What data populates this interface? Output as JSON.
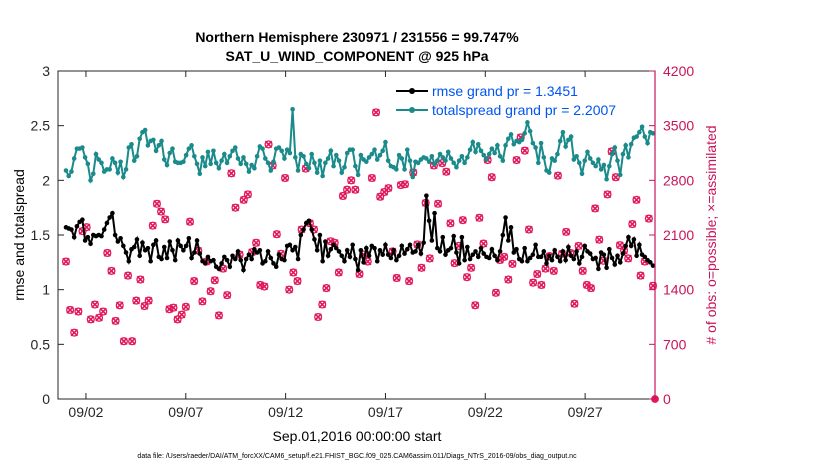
{
  "chart_data": {
    "type": "line",
    "title": "Northern Hemisphere 230971 / 231556 = 99.747%",
    "subtitle": "SAT_U_WIND_COMPONENT @ 925 hPa",
    "xlabel": "Sep.01,2016 00:00:00 start",
    "ylabel_left": "rmse and totalspread",
    "ylabel_right": "# of obs: o=possible; ×=assimilated",
    "footnote": "data file: /Users/raeder/DAI/ATM_forcXX/CAM6_setup/f.e21.FHIST_BGC.f09_025.CAM6assim.011/Diags_NTrS_2016-09/obs_diag_output.nc",
    "xlim": [
      0.6,
      30.5
    ],
    "x_ticks": [
      2,
      7,
      12,
      17,
      22,
      27
    ],
    "x_tick_labels": [
      "09/02",
      "09/07",
      "09/12",
      "09/17",
      "09/22",
      "09/27"
    ],
    "ylim_left": [
      0,
      3
    ],
    "y_ticks_left": [
      "0",
      "0.5",
      "1",
      "1.5",
      "2",
      "2.5",
      "3"
    ],
    "ylim_right": [
      0,
      4200
    ],
    "y_ticks_right": [
      "0",
      "700",
      "1400",
      "2100",
      "2800",
      "3500",
      "4200"
    ],
    "grid": false,
    "legend_position": "top-right",
    "colors": {
      "rmse": "#000000",
      "spread": "#1a8a8a",
      "obs": "#e0185a",
      "right_axis": "#c8145a",
      "legend_text": "#0055ee"
    },
    "series": [
      {
        "name": "rmse grand pr = 1.3451",
        "axis": "left",
        "values": [
          1.57,
          1.56,
          1.55,
          1.48,
          1.58,
          1.62,
          1.64,
          1.45,
          1.48,
          1.42,
          1.5,
          1.49,
          1.5,
          1.49,
          1.55,
          1.61,
          1.66,
          1.7,
          1.5,
          1.44,
          1.47,
          1.4,
          1.34,
          1.26,
          1.37,
          1.39,
          1.46,
          1.31,
          1.43,
          1.36,
          1.38,
          1.26,
          1.41,
          1.45,
          1.3,
          1.28,
          1.39,
          1.29,
          1.44,
          1.36,
          1.27,
          1.45,
          1.4,
          1.36,
          1.4,
          1.47,
          1.29,
          1.34,
          1.45,
          1.33,
          1.26,
          1.24,
          1.3,
          1.26,
          1.27,
          1.21,
          1.19,
          1.24,
          1.3,
          1.27,
          1.21,
          1.31,
          1.28,
          1.35,
          1.27,
          1.18,
          1.28,
          1.32,
          1.28,
          1.37,
          1.34,
          1.36,
          1.24,
          1.26,
          1.35,
          1.29,
          1.24,
          1.21,
          1.32,
          1.28,
          1.27,
          1.4,
          1.41,
          1.36,
          1.39,
          1.28,
          1.5,
          1.55,
          1.61,
          1.63,
          1.55,
          1.46,
          1.36,
          1.5,
          1.26,
          1.44,
          1.31,
          1.37,
          1.41,
          1.38,
          1.35,
          1.31,
          1.26,
          1.36,
          1.3,
          1.41,
          1.28,
          1.18,
          1.36,
          1.25,
          1.38,
          1.31,
          1.4,
          1.38,
          1.26,
          1.36,
          1.32,
          1.41,
          1.32,
          1.29,
          1.36,
          1.27,
          1.31,
          1.4,
          1.33,
          1.37,
          1.41,
          1.34,
          1.35,
          1.41,
          1.33,
          1.43,
          1.86,
          1.63,
          1.45,
          1.7,
          1.38,
          1.35,
          1.48,
          1.32,
          1.36,
          1.38,
          1.49,
          1.34,
          1.24,
          1.48,
          1.27,
          1.39,
          1.28,
          1.32,
          1.35,
          1.3,
          1.38,
          1.33,
          1.3,
          1.29,
          1.37,
          1.31,
          1.27,
          1.35,
          1.5,
          1.66,
          1.45,
          1.57,
          1.34,
          1.37,
          1.28,
          1.26,
          1.38,
          1.26,
          1.29,
          1.32,
          1.41,
          1.3,
          1.3,
          1.35,
          1.24,
          1.31,
          1.27,
          1.36,
          1.3,
          1.26,
          1.35,
          1.27,
          1.39,
          1.31,
          1.28,
          1.35,
          1.24,
          1.3,
          1.4,
          1.35,
          1.33,
          1.28,
          1.29,
          1.19,
          1.34,
          1.32,
          1.2,
          1.37,
          1.29,
          1.23,
          1.31,
          1.25,
          1.33,
          1.4,
          1.48,
          1.4,
          1.46,
          1.31,
          1.41,
          1.32,
          1.3,
          1.27,
          1.25,
          1.22
        ]
      },
      {
        "name": "totalspread grand pr = 2.2007",
        "axis": "left",
        "values": [
          2.09,
          2.04,
          2.08,
          2.2,
          2.29,
          2.29,
          2.3,
          2.21,
          2.15,
          2.0,
          2.06,
          2.24,
          2.19,
          2.16,
          2.08,
          2.1,
          2.1,
          2.2,
          2.16,
          2.07,
          2.17,
          2.03,
          2.1,
          2.3,
          2.33,
          2.18,
          2.22,
          2.38,
          2.44,
          2.46,
          2.32,
          2.36,
          2.37,
          2.27,
          2.32,
          2.36,
          2.19,
          2.14,
          2.25,
          2.29,
          2.17,
          2.16,
          2.16,
          2.17,
          2.23,
          2.29,
          2.32,
          2.22,
          2.15,
          2.06,
          2.21,
          2.13,
          2.26,
          2.15,
          2.27,
          2.16,
          2.11,
          2.18,
          2.24,
          2.16,
          2.22,
          2.27,
          2.3,
          2.2,
          2.15,
          2.21,
          2.15,
          2.08,
          2.14,
          2.11,
          2.22,
          2.31,
          2.29,
          2.2,
          2.16,
          2.09,
          2.17,
          2.29,
          2.3,
          2.27,
          2.2,
          2.28,
          2.25,
          2.65,
          2.21,
          2.09,
          2.24,
          2.22,
          2.15,
          2.11,
          2.24,
          2.16,
          2.07,
          2.18,
          2.04,
          2.16,
          2.2,
          2.27,
          2.13,
          2.23,
          2.18,
          2.07,
          2.12,
          2.25,
          2.28,
          2.28,
          2.13,
          2.05,
          2.23,
          2.19,
          2.17,
          2.21,
          2.24,
          2.28,
          2.19,
          2.23,
          2.27,
          2.35,
          2.18,
          2.13,
          2.12,
          2.1,
          2.23,
          2.2,
          2.1,
          2.28,
          2.18,
          2.03,
          2.17,
          2.16,
          2.19,
          2.21,
          2.2,
          2.17,
          2.22,
          2.15,
          2.18,
          2.24,
          2.21,
          2.18,
          2.26,
          2.2,
          2.16,
          2.12,
          2.18,
          2.22,
          2.16,
          2.21,
          2.28,
          2.35,
          2.26,
          2.33,
          2.27,
          2.23,
          2.19,
          2.24,
          2.29,
          2.25,
          2.32,
          2.22,
          2.18,
          2.32,
          2.38,
          2.42,
          2.33,
          2.36,
          2.35,
          2.37,
          2.43,
          2.53,
          2.45,
          2.34,
          2.3,
          2.16,
          2.34,
          2.21,
          2.09,
          2.07,
          2.2,
          2.18,
          2.24,
          2.36,
          2.44,
          2.31,
          2.37,
          2.4,
          2.19,
          2.22,
          2.16,
          2.06,
          2.18,
          2.26,
          2.2,
          2.16,
          2.13,
          2.19,
          2.1,
          2.14,
          2.01,
          2.13,
          2.24,
          2.3,
          2.18,
          2.05,
          2.24,
          2.32,
          2.21,
          2.33,
          2.39,
          2.4,
          2.44,
          2.49,
          2.4,
          2.34,
          2.44,
          2.43
        ]
      },
      {
        "name": "# of obs possible",
        "axis": "right",
        "marker": "o",
        "values": [
          1760,
          1140,
          850,
          1120,
          2150,
          2200,
          1020,
          1210,
          1040,
          1120,
          1870,
          1640,
          1000,
          1200,
          740,
          1580,
          740,
          1260,
          1530,
          1190,
          1260,
          2220,
          2500,
          2400,
          2300,
          1150,
          1170,
          1020,
          1080,
          1180,
          2270,
          1510,
          1900,
          1250,
          1760,
          1380,
          1520,
          1070,
          1670,
          1330,
          2890,
          2450,
          1850,
          2550,
          2620,
          1880,
          2000,
          1460,
          1440,
          3260,
          2990,
          2110,
          1860,
          2830,
          1400,
          1620,
          1510,
          2170,
          2950,
          2250,
          2170,
          1050,
          1210,
          1420,
          2020,
          2000,
          1620,
          2600,
          2680,
          2800,
          2680,
          1600,
          1850,
          1760,
          2830,
          3670,
          2590,
          2650,
          2700,
          1890,
          1550,
          2740,
          2750,
          1510,
          2900,
          1980,
          1680,
          2510,
          1800,
          2990,
          2500,
          3020,
          2910,
          2250,
          1740,
          1960,
          2290,
          1560,
          1680,
          1200,
          2320,
          1990,
          3060,
          2840,
          1360,
          1780,
          1820,
          1530,
          1730,
          3060,
          3350,
          3180,
          2170,
          1490,
          1600,
          1460,
          1670,
          1830,
          1640,
          2860,
          1860,
          2140,
          1870,
          1220,
          1960,
          1640,
          1460,
          1420,
          2440,
          2040,
          1770,
          2620,
          3170,
          2840,
          1970,
          1900,
          1800,
          2240,
          2550,
          1580,
          1760,
          2310,
          1450
        ]
      },
      {
        "name": "# of obs assimilated",
        "axis": "right",
        "marker": "x",
        "values": [
          1760,
          1140,
          850,
          1120,
          2150,
          2200,
          1020,
          1210,
          1040,
          1120,
          1870,
          1640,
          1000,
          1200,
          740,
          1580,
          740,
          1260,
          1530,
          1190,
          1260,
          2220,
          2500,
          2400,
          2300,
          1150,
          1170,
          1020,
          1080,
          1180,
          2270,
          1510,
          1900,
          1250,
          1760,
          1380,
          1520,
          1070,
          1670,
          1330,
          2890,
          2450,
          1850,
          2550,
          2620,
          1880,
          2000,
          1460,
          1440,
          3260,
          2990,
          2110,
          1860,
          2830,
          1400,
          1620,
          1510,
          2170,
          2950,
          2250,
          2170,
          1050,
          1210,
          1420,
          2020,
          2000,
          1620,
          2600,
          2680,
          2800,
          2680,
          1600,
          1850,
          1760,
          2830,
          3670,
          2590,
          2650,
          2700,
          1890,
          1550,
          2740,
          2750,
          1510,
          2900,
          1980,
          1680,
          2510,
          1800,
          2990,
          2500,
          3020,
          2910,
          2250,
          1740,
          1960,
          2290,
          1560,
          1680,
          1200,
          2320,
          1990,
          3060,
          2840,
          1360,
          1780,
          1820,
          1530,
          1730,
          3060,
          3350,
          3180,
          2170,
          1490,
          1600,
          1460,
          1670,
          1830,
          1640,
          2860,
          1860,
          2140,
          1870,
          1220,
          1960,
          1640,
          1460,
          1420,
          2440,
          2040,
          1770,
          2620,
          3170,
          2840,
          1970,
          1900,
          1800,
          2240,
          2550,
          1580,
          1760,
          2310,
          1450
        ]
      }
    ]
  }
}
